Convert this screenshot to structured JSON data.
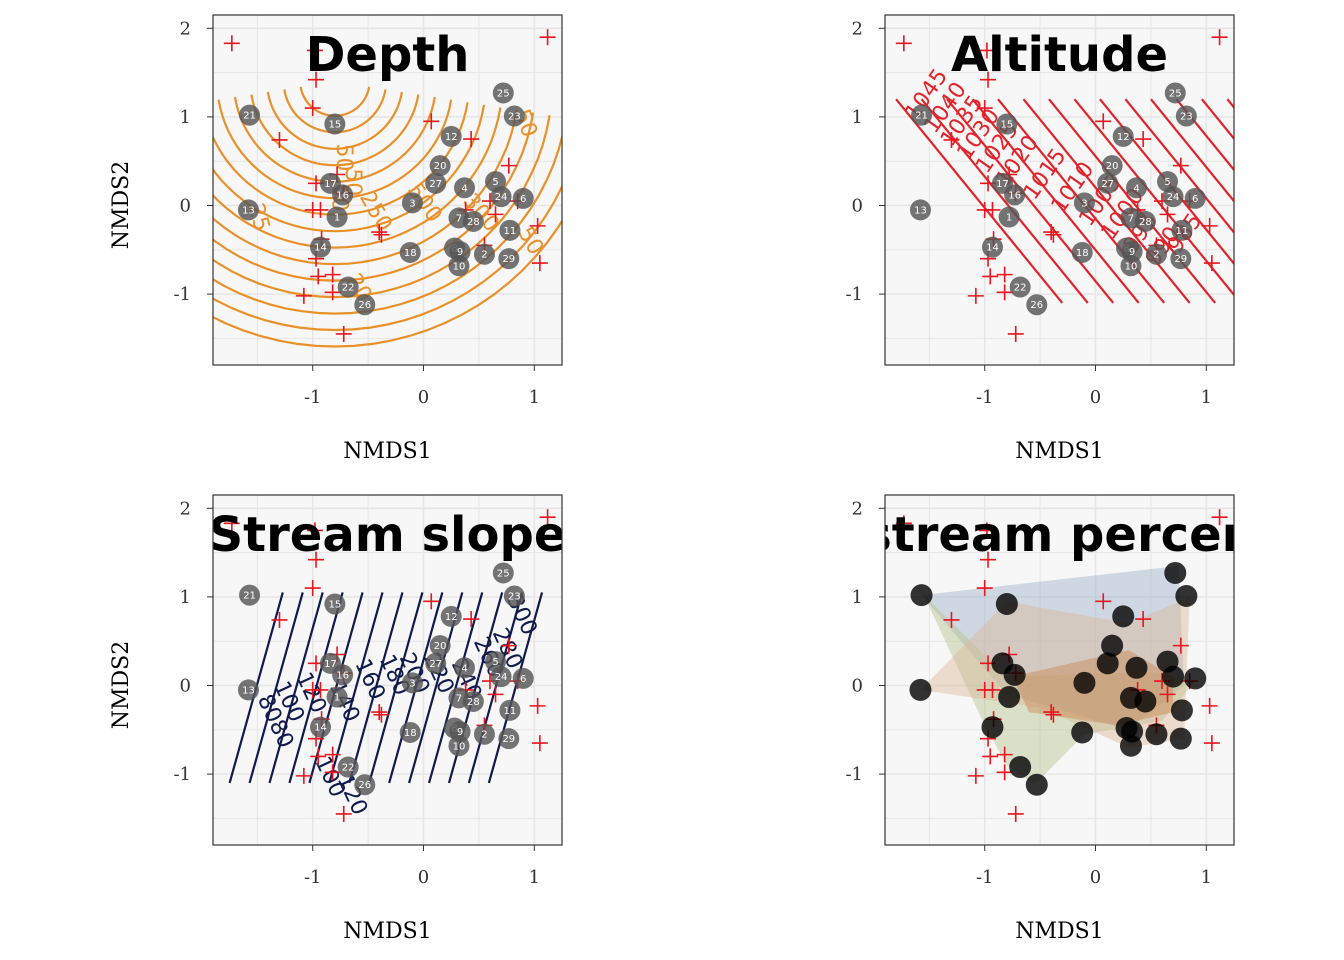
{
  "chart_data": {
    "type": "scatter",
    "x_axis": {
      "label": "NMDS1",
      "ticks": [
        "-1",
        "0",
        "1"
      ],
      "range": [
        -1.9,
        1.25
      ]
    },
    "y_axis": {
      "label": "NMDS2",
      "ticks": [
        "-1",
        "0",
        "1",
        "2"
      ],
      "range": [
        -1.8,
        2.15
      ]
    },
    "grid": true,
    "colors": {
      "panel_bg": "#f7f7f7",
      "grid": "#e6e6e6",
      "depth_contour": "#e8912b",
      "altitude_contour": "#e0242b",
      "slope_contour": "#111a4d",
      "species_marker": "#e8141e",
      "site_point": "#555555"
    },
    "sites": [
      {
        "label": "1",
        "x": -0.78,
        "y": -0.13
      },
      {
        "label": "2",
        "x": 0.55,
        "y": -0.55
      },
      {
        "label": "3",
        "x": -0.1,
        "y": 0.03
      },
      {
        "label": "4",
        "x": 0.37,
        "y": 0.2
      },
      {
        "label": "5",
        "x": 0.65,
        "y": 0.27
      },
      {
        "label": "6",
        "x": 0.9,
        "y": 0.08
      },
      {
        "label": "7",
        "x": 0.32,
        "y": -0.14
      },
      {
        "label": "8",
        "x": 0.28,
        "y": -0.48
      },
      {
        "label": "9",
        "x": 0.33,
        "y": -0.52
      },
      {
        "label": "10",
        "x": 0.32,
        "y": -0.68
      },
      {
        "label": "11",
        "x": 0.78,
        "y": -0.28
      },
      {
        "label": "12",
        "x": 0.25,
        "y": 0.78
      },
      {
        "label": "13",
        "x": -1.58,
        "y": -0.05
      },
      {
        "label": "14",
        "x": -0.93,
        "y": -0.47
      },
      {
        "label": "15",
        "x": -0.8,
        "y": 0.92
      },
      {
        "label": "16",
        "x": -0.73,
        "y": 0.12
      },
      {
        "label": "17",
        "x": -0.84,
        "y": 0.25
      },
      {
        "label": "18",
        "x": -0.12,
        "y": -0.53
      },
      {
        "label": "20",
        "x": 0.15,
        "y": 0.45
      },
      {
        "label": "21",
        "x": -1.57,
        "y": 1.02
      },
      {
        "label": "22",
        "x": -0.68,
        "y": -0.92
      },
      {
        "label": "23",
        "x": 0.82,
        "y": 1.01
      },
      {
        "label": "24",
        "x": 0.7,
        "y": 0.1
      },
      {
        "label": "25",
        "x": 0.72,
        "y": 1.27
      },
      {
        "label": "26",
        "x": -0.53,
        "y": -1.12
      },
      {
        "label": "27",
        "x": 0.11,
        "y": 0.25
      },
      {
        "label": "28",
        "x": 0.45,
        "y": -0.18
      },
      {
        "label": "29",
        "x": 0.77,
        "y": -0.6
      }
    ],
    "species": [
      {
        "x": -1.73,
        "y": 1.83
      },
      {
        "x": 1.12,
        "y": 1.9
      },
      {
        "x": -0.98,
        "y": 1.75
      },
      {
        "x": -0.97,
        "y": 1.42
      },
      {
        "x": -1.0,
        "y": 1.1
      },
      {
        "x": -1.3,
        "y": 0.74
      },
      {
        "x": 0.07,
        "y": 0.95
      },
      {
        "x": 0.43,
        "y": 0.75
      },
      {
        "x": 0.77,
        "y": 0.45
      },
      {
        "x": -0.97,
        "y": 0.25
      },
      {
        "x": -1.0,
        "y": -0.05
      },
      {
        "x": -0.93,
        "y": -0.05
      },
      {
        "x": -0.72,
        "y": 0.14
      },
      {
        "x": -0.78,
        "y": 0.35
      },
      {
        "x": -0.4,
        "y": -0.3
      },
      {
        "x": -0.38,
        "y": -0.33
      },
      {
        "x": -0.92,
        "y": -0.38
      },
      {
        "x": -0.97,
        "y": -0.6
      },
      {
        "x": -0.95,
        "y": -0.8
      },
      {
        "x": -0.82,
        "y": -0.78
      },
      {
        "x": -0.82,
        "y": -0.98
      },
      {
        "x": -1.08,
        "y": -1.02
      },
      {
        "x": -0.72,
        "y": -1.45
      },
      {
        "x": 0.65,
        "y": -0.1
      },
      {
        "x": 0.6,
        "y": 0.05
      },
      {
        "x": 0.85,
        "y": 0.05
      },
      {
        "x": 1.03,
        "y": -0.23
      },
      {
        "x": 1.05,
        "y": -0.65
      },
      {
        "x": 0.38,
        "y": -0.05
      },
      {
        "x": 0.55,
        "y": -0.45
      }
    ],
    "panels": [
      {
        "title": "Depth",
        "kind": "contour",
        "contour_labels": [
          {
            "text": "25",
            "x": -1.58,
            "y": 0.0,
            "rot": 75
          },
          {
            "text": "50",
            "x": -0.78,
            "y": 0.7,
            "rot": 90
          },
          {
            "text": "50",
            "x": -0.7,
            "y": 0.42,
            "rot": 90
          },
          {
            "text": "50",
            "x": -0.82,
            "y": 0.25,
            "rot": 90
          },
          {
            "text": "250",
            "x": -0.58,
            "y": 0.1,
            "rot": 60
          },
          {
            "text": "500",
            "x": -0.15,
            "y": 0.18,
            "rot": 55
          },
          {
            "text": "300",
            "x": 0.35,
            "y": 0.05,
            "rot": 50
          },
          {
            "text": "50",
            "x": 0.85,
            "y": -0.3,
            "rot": 60
          },
          {
            "text": "50",
            "x": 0.82,
            "y": 1.05,
            "rot": 70
          },
          {
            "text": "20",
            "x": -0.7,
            "y": -0.83,
            "rot": 60
          }
        ]
      },
      {
        "title": "Altitude",
        "kind": "contour",
        "contour_labels": [
          {
            "text": "1045",
            "x": -1.62,
            "y": 0.95,
            "rot": -55
          },
          {
            "text": "1040",
            "x": -1.45,
            "y": 0.8,
            "rot": -55
          },
          {
            "text": "1035",
            "x": -1.3,
            "y": 0.65,
            "rot": -55
          },
          {
            "text": "1030",
            "x": -1.15,
            "y": 0.5,
            "rot": -55
          },
          {
            "text": "1025",
            "x": -0.98,
            "y": 0.35,
            "rot": -55
          },
          {
            "text": "1020",
            "x": -0.8,
            "y": 0.2,
            "rot": -55
          },
          {
            "text": "1015",
            "x": -0.55,
            "y": 0.05,
            "rot": -55
          },
          {
            "text": "1010",
            "x": -0.3,
            "y": -0.1,
            "rot": -55
          },
          {
            "text": "1005",
            "x": -0.05,
            "y": -0.25,
            "rot": -55
          },
          {
            "text": "1000",
            "x": 0.15,
            "y": -0.4,
            "rot": -55
          },
          {
            "text": "995",
            "x": 0.35,
            "y": -0.55,
            "rot": -55
          },
          {
            "text": "990",
            "x": 0.55,
            "y": -0.7,
            "rot": -55
          },
          {
            "text": "985",
            "x": 0.75,
            "y": -0.55,
            "rot": -55
          }
        ]
      },
      {
        "title": "Stream slope",
        "kind": "contour",
        "contour_labels": [
          {
            "text": "8080",
            "x": -1.5,
            "y": -0.15,
            "rot": 65
          },
          {
            "text": "100",
            "x": -1.35,
            "y": 0.0,
            "rot": 65
          },
          {
            "text": "120",
            "x": -1.15,
            "y": 0.1,
            "rot": 65
          },
          {
            "text": "140",
            "x": -0.85,
            "y": 0.0,
            "rot": 65
          },
          {
            "text": "160",
            "x": -0.62,
            "y": 0.25,
            "rot": 65
          },
          {
            "text": "180",
            "x": -0.4,
            "y": 0.3,
            "rot": 65
          },
          {
            "text": "200",
            "x": -0.22,
            "y": 0.32,
            "rot": 65
          },
          {
            "text": "220",
            "x": 0.0,
            "y": 0.32,
            "rot": 65
          },
          {
            "text": "240",
            "x": 0.25,
            "y": 0.25,
            "rot": 65
          },
          {
            "text": "260",
            "x": 0.45,
            "y": 0.5,
            "rot": 65
          },
          {
            "text": "280",
            "x": 0.62,
            "y": 0.6,
            "rot": 65
          },
          {
            "text": "300",
            "x": 0.75,
            "y": 0.98,
            "rot": 65
          },
          {
            "text": "100",
            "x": -0.98,
            "y": -0.85,
            "rot": 65
          },
          {
            "text": "120",
            "x": -0.78,
            "y": -1.05,
            "rot": 65
          }
        ]
      },
      {
        "title": "stream percen",
        "kind": "hulls",
        "hulls": [
          {
            "color": "#9eb0c8",
            "points": [
              [
                -1.57,
                1.02
              ],
              [
                0.75,
                1.35
              ],
              [
                0.8,
                0.0
              ],
              [
                0.3,
                -0.5
              ],
              [
                -0.8,
                -0.1
              ]
            ]
          },
          {
            "color": "#b6c38c",
            "points": [
              [
                -1.55,
                1.02
              ],
              [
                -0.8,
                0.1
              ],
              [
                0.5,
                0.15
              ],
              [
                0.9,
                0.05
              ],
              [
                0.6,
                -0.4
              ],
              [
                -0.1,
                -0.55
              ],
              [
                -0.55,
                -1.12
              ],
              [
                -0.8,
                -0.9
              ],
              [
                -1.0,
                -0.45
              ]
            ]
          },
          {
            "color": "#d9b79a",
            "points": [
              [
                -1.58,
                -0.05
              ],
              [
                -0.8,
                0.95
              ],
              [
                0.3,
                0.7
              ],
              [
                0.85,
                1.0
              ],
              [
                0.8,
                -0.6
              ],
              [
                0.3,
                -0.7
              ],
              [
                -0.5,
                -0.25
              ]
            ]
          },
          {
            "color": "#c8864f",
            "points": [
              [
                -0.75,
                0.1
              ],
              [
                0.3,
                0.4
              ],
              [
                0.7,
                0.1
              ],
              [
                0.7,
                -0.3
              ],
              [
                0.2,
                -0.45
              ],
              [
                -0.6,
                -0.3
              ]
            ]
          }
        ]
      }
    ]
  }
}
